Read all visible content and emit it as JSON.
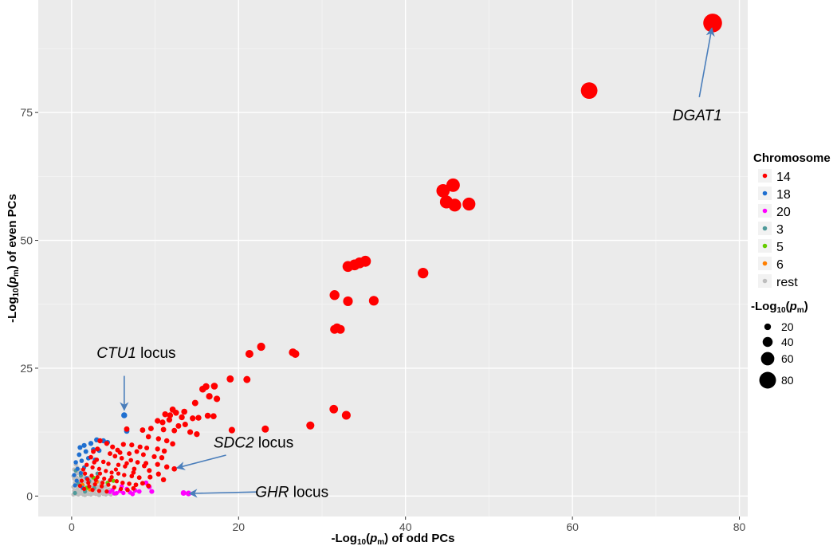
{
  "chart_data": {
    "type": "scatter",
    "xlabel_parts": [
      "-Log",
      "10",
      "(",
      "p",
      "m",
      ") of odd PCs"
    ],
    "ylabel_parts": [
      "-Log",
      "10",
      "(",
      "p",
      "m",
      ") of even PCs"
    ],
    "xlim": [
      -4,
      81
    ],
    "ylim": [
      -4,
      97
    ],
    "x_ticks": [
      0,
      20,
      40,
      60,
      80
    ],
    "y_ticks": [
      0,
      25,
      50,
      75
    ],
    "grid": true,
    "legend": {
      "placement": "right",
      "color_title": "Chromosome",
      "color_entries": [
        {
          "label": "14",
          "color": "#ff0000"
        },
        {
          "label": "18",
          "color": "#1f6fd0"
        },
        {
          "label": "20",
          "color": "#ff00ff"
        },
        {
          "label": "3",
          "color": "#4f9a9a"
        },
        {
          "label": "5",
          "color": "#66cc00"
        },
        {
          "label": "6",
          "color": "#ff7f00"
        },
        {
          "label": "rest",
          "color": "#bebebe"
        }
      ],
      "size_title_parts": [
        "-Log",
        "10",
        "(",
        "p",
        "m",
        ")"
      ],
      "size_entries": [
        20,
        40,
        60,
        80
      ]
    },
    "annotations": [
      {
        "italic": "DGAT1",
        "text": "",
        "text_at": [
          72,
          73.5
        ],
        "arrow_from": [
          75.2,
          78
        ],
        "arrow_to": [
          76.7,
          91.5
        ]
      },
      {
        "italic": "CTU1",
        "text": " locus",
        "text_at": [
          3,
          27
        ],
        "arrow_from": [
          6.3,
          23.5
        ],
        "arrow_to": [
          6.3,
          16.8
        ]
      },
      {
        "italic": "SDC2",
        "text": " locus",
        "text_at": [
          17,
          9.5
        ],
        "arrow_from": [
          18.5,
          8.0
        ],
        "arrow_to": [
          12.6,
          5.5
        ]
      },
      {
        "italic": "GHR",
        "text": " locus",
        "text_at": [
          22,
          -0.2
        ],
        "arrow_from": [
          22.2,
          0.8
        ],
        "arrow_to": [
          14.1,
          0.5
        ]
      }
    ],
    "series": [
      {
        "name": "14",
        "color": "#ff0000",
        "points": [
          [
            76.8,
            92.5
          ],
          [
            62.0,
            79.3
          ],
          [
            47.6,
            57.1
          ],
          [
            45.9,
            56.9
          ],
          [
            45.7,
            60.8
          ],
          [
            44.5,
            59.7
          ],
          [
            44.9,
            57.5
          ],
          [
            35.2,
            45.9
          ],
          [
            34.5,
            45.6
          ],
          [
            33.9,
            45.2
          ],
          [
            33.1,
            44.9
          ],
          [
            42.1,
            43.6
          ],
          [
            31.5,
            39.3
          ],
          [
            33.1,
            38.1
          ],
          [
            36.2,
            38.2
          ],
          [
            31.8,
            32.9
          ],
          [
            32.2,
            32.6
          ],
          [
            31.5,
            32.6
          ],
          [
            22.7,
            29.2
          ],
          [
            21.3,
            27.8
          ],
          [
            26.5,
            28.1
          ],
          [
            26.8,
            27.8
          ],
          [
            19.0,
            22.9
          ],
          [
            21.0,
            22.8
          ],
          [
            16.1,
            21.4
          ],
          [
            17.1,
            21.5
          ],
          [
            15.7,
            20.9
          ],
          [
            16.5,
            19.5
          ],
          [
            17.4,
            19.0
          ],
          [
            14.8,
            18.2
          ],
          [
            13.5,
            16.5
          ],
          [
            12.1,
            16.9
          ],
          [
            12.5,
            16.3
          ],
          [
            11.2,
            16.0
          ],
          [
            11.8,
            15.8
          ],
          [
            16.3,
            15.7
          ],
          [
            17.0,
            15.6
          ],
          [
            15.2,
            15.3
          ],
          [
            14.5,
            15.2
          ],
          [
            13.2,
            15.4
          ],
          [
            10.3,
            14.7
          ],
          [
            10.9,
            14.4
          ],
          [
            11.7,
            14.9
          ],
          [
            12.8,
            13.7
          ],
          [
            13.6,
            14.0
          ],
          [
            9.5,
            13.2
          ],
          [
            11.0,
            13.0
          ],
          [
            12.3,
            12.8
          ],
          [
            14.2,
            12.5
          ],
          [
            15.0,
            12.1
          ],
          [
            19.2,
            12.9
          ],
          [
            23.2,
            13.1
          ],
          [
            28.6,
            13.8
          ],
          [
            31.4,
            17.0
          ],
          [
            32.9,
            15.8
          ],
          [
            6.6,
            13.1
          ],
          [
            8.5,
            12.9
          ],
          [
            9.2,
            11.6
          ],
          [
            10.4,
            11.2
          ],
          [
            11.4,
            10.8
          ],
          [
            12.1,
            10.2
          ],
          [
            6.2,
            10.1
          ],
          [
            7.2,
            10.0
          ],
          [
            8.2,
            9.6
          ],
          [
            9.0,
            9.4
          ],
          [
            10.3,
            9.2
          ],
          [
            11.1,
            8.8
          ],
          [
            7.8,
            8.7
          ],
          [
            6.9,
            8.3
          ],
          [
            5.8,
            8.5
          ],
          [
            8.6,
            8.1
          ],
          [
            9.9,
            7.7
          ],
          [
            10.8,
            7.5
          ],
          [
            3.4,
            10.8
          ],
          [
            4.2,
            10.3
          ],
          [
            4.9,
            9.6
          ],
          [
            5.5,
            9.0
          ],
          [
            3.1,
            9.2
          ],
          [
            2.6,
            8.7
          ],
          [
            4.6,
            8.3
          ],
          [
            5.2,
            7.8
          ],
          [
            6.0,
            7.4
          ],
          [
            7.1,
            7.0
          ],
          [
            7.9,
            6.6
          ],
          [
            8.9,
            6.4
          ],
          [
            2.3,
            7.6
          ],
          [
            3.0,
            7.1
          ],
          [
            3.8,
            6.7
          ],
          [
            4.4,
            6.3
          ],
          [
            5.6,
            6.1
          ],
          [
            6.4,
            5.8
          ],
          [
            8.7,
            5.9
          ],
          [
            10.3,
            6.2
          ],
          [
            11.4,
            5.7
          ],
          [
            12.3,
            5.3
          ],
          [
            7.5,
            5.3
          ],
          [
            9.3,
            5.0
          ],
          [
            1.8,
            6.1
          ],
          [
            2.5,
            5.6
          ],
          [
            3.3,
            5.3
          ],
          [
            4.1,
            4.9
          ],
          [
            4.8,
            4.6
          ],
          [
            5.6,
            4.4
          ],
          [
            6.3,
            4.1
          ],
          [
            7.2,
            3.9
          ],
          [
            8.1,
            3.6
          ],
          [
            9.4,
            3.7
          ],
          [
            10.4,
            4.3
          ],
          [
            11.0,
            3.2
          ],
          [
            1.6,
            4.4
          ],
          [
            2.4,
            4.0
          ],
          [
            3.1,
            3.7
          ],
          [
            3.9,
            3.4
          ],
          [
            4.6,
            3.1
          ],
          [
            5.4,
            2.9
          ],
          [
            6.1,
            2.6
          ],
          [
            6.9,
            2.4
          ],
          [
            7.7,
            2.2
          ],
          [
            8.5,
            2.5
          ],
          [
            9.2,
            2.0
          ],
          [
            4.4,
            2.2
          ],
          [
            1.2,
            3.0
          ],
          [
            2.0,
            2.6
          ],
          [
            2.8,
            2.3
          ],
          [
            3.6,
            1.9
          ],
          [
            5.1,
            1.7
          ],
          [
            5.9,
            1.4
          ],
          [
            6.7,
            1.2
          ],
          [
            7.4,
            1.5
          ],
          [
            1.5,
            1.4
          ],
          [
            2.5,
            1.2
          ],
          [
            3.3,
            1.0
          ],
          [
            4.2,
            0.9
          ],
          [
            1.0,
            2.0
          ],
          [
            1.9,
            3.3
          ],
          [
            2.9,
            3.1
          ],
          [
            3.7,
            2.6
          ],
          [
            4.8,
            3.7
          ],
          [
            5.3,
            5.2
          ],
          [
            6.6,
            6.4
          ],
          [
            7.4,
            4.6
          ],
          [
            2.1,
            1.9
          ],
          [
            3.4,
            4.4
          ],
          [
            1.4,
            5.2
          ],
          [
            2.7,
            6.6
          ]
        ]
      },
      {
        "name": "18",
        "color": "#1f6fd0",
        "points": [
          [
            6.3,
            15.8
          ],
          [
            6.6,
            12.7
          ],
          [
            1.0,
            9.5
          ],
          [
            1.5,
            9.9
          ],
          [
            2.3,
            10.3
          ],
          [
            3.0,
            11.0
          ],
          [
            3.8,
            10.8
          ],
          [
            4.3,
            10.5
          ],
          [
            0.9,
            8.1
          ],
          [
            1.7,
            8.7
          ],
          [
            2.6,
            9.1
          ],
          [
            3.3,
            8.9
          ],
          [
            0.5,
            6.6
          ],
          [
            1.2,
            6.9
          ],
          [
            2.0,
            7.4
          ],
          [
            2.8,
            7.1
          ],
          [
            0.7,
            5.3
          ],
          [
            1.5,
            5.6
          ],
          [
            0.3,
            4.1
          ],
          [
            1.1,
            4.5
          ],
          [
            0.6,
            3.0
          ],
          [
            1.8,
            3.5
          ],
          [
            0.4,
            2.1
          ],
          [
            1.3,
            1.6
          ]
        ]
      },
      {
        "name": "20",
        "color": "#ff00ff",
        "points": [
          [
            14.0,
            0.5
          ],
          [
            13.4,
            0.6
          ],
          [
            9.3,
            1.8
          ],
          [
            9.6,
            0.9
          ],
          [
            8.9,
            2.6
          ],
          [
            7.6,
            1.1
          ],
          [
            7.0,
            0.7
          ],
          [
            6.6,
            1.4
          ],
          [
            6.2,
            0.6
          ],
          [
            5.8,
            1.0
          ],
          [
            5.4,
            0.6
          ],
          [
            6.0,
            1.9
          ],
          [
            4.9,
            1.2
          ],
          [
            5.1,
            0.5
          ],
          [
            4.6,
            0.8
          ],
          [
            7.3,
            0.4
          ],
          [
            8.1,
            0.9
          ]
        ]
      },
      {
        "name": "3",
        "color": "#4f9a9a",
        "points": [
          [
            0.5,
            5.0
          ],
          [
            1.1,
            4.0
          ],
          [
            2.1,
            2.9
          ],
          [
            0.8,
            2.4
          ],
          [
            3.1,
            4.4
          ],
          [
            1.6,
            0.9
          ],
          [
            2.7,
            1.6
          ],
          [
            0.4,
            0.6
          ]
        ]
      },
      {
        "name": "5",
        "color": "#66cc00",
        "points": [
          [
            4.3,
            2.6
          ],
          [
            3.6,
            2.0
          ],
          [
            5.0,
            3.0
          ],
          [
            2.6,
            3.6
          ],
          [
            1.8,
            1.6
          ]
        ]
      },
      {
        "name": "6",
        "color": "#ff7f00",
        "points": [
          [
            3.0,
            2.8
          ],
          [
            2.2,
            1.3
          ],
          [
            1.3,
            2.2
          ]
        ]
      },
      {
        "name": "rest",
        "color": "#bebebe",
        "points": [
          [
            0.2,
            0.3
          ],
          [
            0.5,
            0.4
          ],
          [
            0.8,
            0.3
          ],
          [
            1.1,
            0.5
          ],
          [
            1.4,
            0.3
          ],
          [
            1.7,
            0.6
          ],
          [
            2.0,
            0.4
          ],
          [
            2.3,
            0.3
          ],
          [
            2.6,
            0.5
          ],
          [
            2.9,
            0.4
          ],
          [
            3.2,
            0.3
          ],
          [
            3.5,
            0.6
          ],
          [
            3.8,
            0.4
          ],
          [
            4.1,
            0.3
          ],
          [
            4.4,
            0.5
          ],
          [
            4.7,
            0.3
          ],
          [
            0.3,
            1.0
          ],
          [
            0.6,
            1.2
          ],
          [
            0.9,
            0.9
          ],
          [
            1.2,
            1.1
          ],
          [
            1.5,
            1.3
          ],
          [
            1.8,
            1.0
          ],
          [
            2.1,
            1.2
          ],
          [
            2.4,
            0.9
          ],
          [
            2.7,
            1.1
          ],
          [
            3.0,
            1.3
          ],
          [
            3.3,
            1.0
          ],
          [
            3.6,
            1.2
          ],
          [
            3.9,
            0.9
          ],
          [
            4.2,
            1.1
          ],
          [
            4.5,
            1.3
          ],
          [
            4.8,
            1.0
          ],
          [
            0.2,
            1.8
          ],
          [
            0.5,
            2.0
          ],
          [
            0.8,
            1.7
          ],
          [
            1.1,
            1.9
          ],
          [
            1.4,
            2.1
          ],
          [
            1.7,
            1.8
          ],
          [
            2.0,
            2.0
          ],
          [
            2.3,
            1.7
          ],
          [
            2.6,
            1.9
          ],
          [
            2.9,
            2.1
          ],
          [
            3.2,
            1.8
          ],
          [
            3.5,
            2.0
          ],
          [
            3.8,
            1.7
          ],
          [
            4.1,
            1.9
          ],
          [
            0.4,
            2.6
          ],
          [
            0.7,
            2.8
          ],
          [
            1.0,
            2.5
          ],
          [
            1.3,
            2.7
          ],
          [
            1.6,
            2.9
          ],
          [
            1.9,
            2.6
          ],
          [
            2.2,
            2.8
          ],
          [
            2.5,
            2.5
          ],
          [
            2.8,
            2.7
          ],
          [
            3.1,
            2.9
          ],
          [
            3.4,
            2.6
          ],
          [
            3.7,
            2.8
          ],
          [
            0.3,
            3.4
          ],
          [
            0.6,
            3.6
          ],
          [
            0.9,
            3.3
          ],
          [
            1.2,
            3.5
          ],
          [
            1.5,
            3.7
          ],
          [
            1.8,
            3.4
          ],
          [
            2.1,
            3.6
          ],
          [
            2.4,
            3.3
          ],
          [
            2.7,
            3.5
          ],
          [
            0.5,
            4.3
          ],
          [
            0.8,
            4.5
          ],
          [
            1.1,
            4.2
          ],
          [
            1.4,
            4.4
          ],
          [
            0.3,
            5.2
          ],
          [
            0.7,
            5.5
          ],
          [
            1.0,
            5.1
          ],
          [
            0.5,
            6.2
          ],
          [
            0.2,
            3.9
          ],
          [
            5.0,
            0.6
          ],
          [
            5.3,
            0.4
          ],
          [
            3.3,
            0.2
          ],
          [
            1.6,
            0.2
          ]
        ]
      }
    ]
  }
}
